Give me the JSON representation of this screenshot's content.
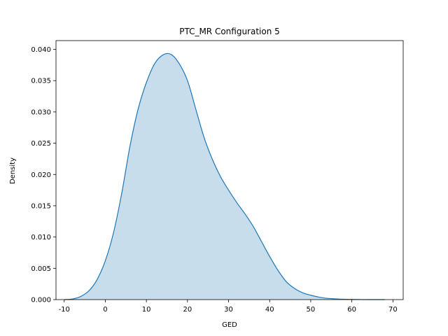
{
  "chart_data": {
    "type": "area",
    "title": "PTC_MR Configuration 5",
    "xlabel": "GED",
    "ylabel": "Density",
    "xlim": [
      -12,
      72.5
    ],
    "ylim": [
      0,
      0.0414
    ],
    "xticks": [
      -10,
      0,
      10,
      20,
      30,
      40,
      50,
      60,
      70
    ],
    "yticks": [
      0.0,
      0.005,
      0.01,
      0.015,
      0.02,
      0.025,
      0.03,
      0.035,
      0.04
    ],
    "ytick_labels": [
      "0.000",
      "0.005",
      "0.010",
      "0.015",
      "0.020",
      "0.025",
      "0.030",
      "0.035",
      "0.040"
    ],
    "grid": false,
    "colors": {
      "line": "#1f77b4",
      "fill": "#1f77b4"
    },
    "series": [
      {
        "x": [
          -10,
          -8,
          -6,
          -4,
          -2,
          0,
          2,
          4,
          6,
          8,
          10,
          12,
          14,
          16,
          18,
          20,
          22,
          24,
          26,
          28,
          30,
          32,
          34,
          36,
          38,
          40,
          42,
          44,
          46,
          48,
          50,
          52,
          54,
          56,
          58,
          60,
          62,
          64,
          66,
          68
        ],
        "y": [
          0.0,
          0.0001,
          0.0005,
          0.0014,
          0.0032,
          0.0062,
          0.0107,
          0.017,
          0.0245,
          0.0305,
          0.0347,
          0.0377,
          0.0391,
          0.0392,
          0.0377,
          0.035,
          0.0305,
          0.026,
          0.0225,
          0.0197,
          0.0175,
          0.0155,
          0.0137,
          0.0117,
          0.0093,
          0.0069,
          0.0047,
          0.0029,
          0.0018,
          0.0011,
          0.0007,
          0.0004,
          0.0002,
          0.00012,
          6e-05,
          3e-05,
          1e-05,
          0.0,
          0.0,
          0.0
        ]
      }
    ]
  }
}
